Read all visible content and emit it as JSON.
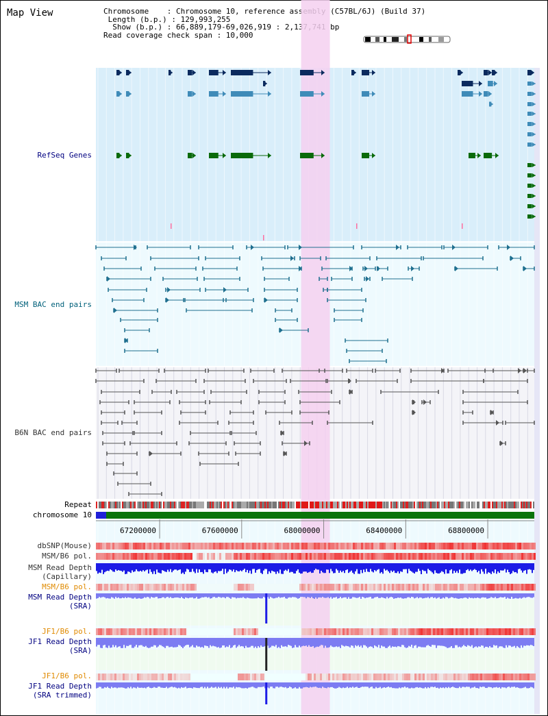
{
  "title": "Map View",
  "info": {
    "chromosome_line": "Chromosome    : Chromosome 10, reference assembly (C57BL/6J) (Build 37)",
    "length_line": " Length (b.p.) : 129,993,255",
    "show_line": "  Show (b.p.) : 66,889,179-69,026,919 : 2,137,741 bp",
    "coverage_line": "Read coverage check span : 10,000"
  },
  "track_labels": {
    "refseq": "RefSeq Genes",
    "msm_bac": "MSM BAC end pairs",
    "b6n_bac": "B6N BAC end pairs",
    "repeat": "Repeat",
    "chromosome": "chromosome 10",
    "dbsnp": "dbSNP(Mouse)",
    "msm_b6_pol_1": "MSM/B6 pol.",
    "msm_read_depth_cap_1": "MSM Read Depth",
    "msm_read_depth_cap_2": "(Capillary)",
    "msm_b6_pol_2": "MSM/B6 pol.",
    "msm_read_depth_sra_1": "MSM Read Depth",
    "msm_read_depth_sra_2": "(SRA)",
    "jf1_b6_pol_1": "JF1/B6 pol.",
    "jf1_read_depth_sra_1": "JF1 Read Depth",
    "jf1_read_depth_sra_2": "(SRA)",
    "jf1_b6_pol_2": "JF1/B6 pol.",
    "jf1_read_depth_trim_1": "JF1 Read Depth",
    "jf1_read_depth_trim_2": "(SRA trimmed)"
  },
  "axis": {
    "ticks": [
      {
        "label": "67200000",
        "value": 67200000
      },
      {
        "label": "67600000",
        "value": 67600000
      },
      {
        "label": "68000000",
        "value": 68000000
      },
      {
        "label": "68400000",
        "value": 68400000
      },
      {
        "label": "68800000",
        "value": 68800000
      }
    ],
    "start": 66889179,
    "end": 69026919
  },
  "highlight_region": {
    "start": 67890000,
    "end": 68030000
  },
  "spike_position": 67715000,
  "colors": {
    "refseq_dark": "#0b2a5e",
    "refseq_mid": "#3f8bb8",
    "refseq_green": "#0a6a0a",
    "msm_bac": "#1f6f8f",
    "b6n_bac": "#555555",
    "depth_blue": "#1c1ce6",
    "depth_light": "#7c7cf2",
    "highlight": "#f5d0f0",
    "chrom_green": "#0a740a",
    "label_navy": "#000080",
    "label_teal": "#00607a",
    "label_orange": "#e08a00"
  }
}
